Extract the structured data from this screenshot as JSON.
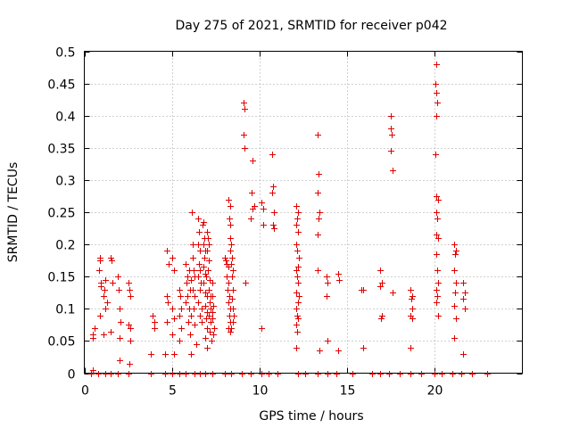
{
  "chart_data": {
    "type": "scatter",
    "title": "Day 275 of 2021, SRMTID for receiver p042",
    "xlabel": "GPS time / hours",
    "ylabel": "SRMTID / TECUs",
    "xlim": [
      0,
      25
    ],
    "ylim": [
      0,
      0.5
    ],
    "xticks": [
      0,
      5,
      10,
      15,
      20
    ],
    "xtick_labels": [
      "0",
      "5",
      "10",
      "15",
      "20"
    ],
    "yticks": [
      0,
      0.05,
      0.1,
      0.15,
      0.2,
      0.25,
      0.3,
      0.35,
      0.4,
      0.45,
      0.5
    ],
    "ytick_labels": [
      "0",
      "0.05",
      "0.1",
      "0.15",
      "0.2",
      "0.25",
      "0.3",
      "0.35",
      "0.4",
      "0.45",
      "0.5"
    ],
    "grid": true,
    "marker": "+",
    "marker_color": "#e00000",
    "series": [
      {
        "name": "SRMTID",
        "points": [
          [
            0.4,
            0.0
          ],
          [
            0.5,
            0.005
          ],
          [
            0.5,
            0.06
          ],
          [
            0.6,
            0.07
          ],
          [
            0.5,
            0.055
          ],
          [
            0.8,
            0.0
          ],
          [
            0.9,
            0.09
          ],
          [
            0.85,
            0.16
          ],
          [
            0.9,
            0.175
          ],
          [
            0.9,
            0.18
          ],
          [
            0.95,
            0.14
          ],
          [
            0.95,
            0.135
          ],
          [
            1.2,
            0.0
          ],
          [
            1.1,
            0.12
          ],
          [
            1.2,
            0.1
          ],
          [
            1.15,
            0.13
          ],
          [
            1.2,
            0.145
          ],
          [
            1.3,
            0.11
          ],
          [
            1.1,
            0.06
          ],
          [
            1.5,
            0.0
          ],
          [
            1.5,
            0.18
          ],
          [
            1.55,
            0.175
          ],
          [
            1.6,
            0.14
          ],
          [
            1.5,
            0.065
          ],
          [
            1.9,
            0.0
          ],
          [
            1.9,
            0.15
          ],
          [
            2.0,
            0.1
          ],
          [
            1.95,
            0.13
          ],
          [
            2.05,
            0.08
          ],
          [
            2.0,
            0.055
          ],
          [
            2.0,
            0.02
          ],
          [
            2.5,
            0.0
          ],
          [
            2.5,
            0.14
          ],
          [
            2.55,
            0.13
          ],
          [
            2.6,
            0.12
          ],
          [
            2.5,
            0.075
          ],
          [
            2.6,
            0.07
          ],
          [
            2.6,
            0.05
          ],
          [
            2.55,
            0.015
          ],
          [
            3.8,
            0.0
          ],
          [
            3.9,
            0.09
          ],
          [
            4.0,
            0.08
          ],
          [
            3.8,
            0.03
          ],
          [
            4.0,
            0.07
          ],
          [
            4.6,
            0.0
          ],
          [
            4.7,
            0.19
          ],
          [
            4.8,
            0.17
          ],
          [
            4.7,
            0.12
          ],
          [
            4.75,
            0.11
          ],
          [
            4.7,
            0.08
          ],
          [
            4.6,
            0.03
          ],
          [
            5.0,
            0.0
          ],
          [
            5.0,
            0.18
          ],
          [
            5.1,
            0.16
          ],
          [
            5.0,
            0.1
          ],
          [
            5.1,
            0.085
          ],
          [
            5.0,
            0.06
          ],
          [
            5.1,
            0.03
          ],
          [
            5.4,
            0.0
          ],
          [
            5.4,
            0.13
          ],
          [
            5.45,
            0.12
          ],
          [
            5.5,
            0.1
          ],
          [
            5.4,
            0.09
          ],
          [
            5.5,
            0.07
          ],
          [
            5.4,
            0.05
          ],
          [
            5.8,
            0.0
          ],
          [
            5.8,
            0.17
          ],
          [
            5.9,
            0.15
          ],
          [
            5.85,
            0.14
          ],
          [
            5.9,
            0.12
          ],
          [
            5.8,
            0.11
          ],
          [
            5.95,
            0.08
          ],
          [
            6.0,
            0.16
          ],
          [
            6.1,
            0.145
          ],
          [
            6.05,
            0.13
          ],
          [
            6.0,
            0.1
          ],
          [
            6.1,
            0.09
          ],
          [
            6.05,
            0.06
          ],
          [
            6.1,
            0.03
          ],
          [
            6.15,
            0.25
          ],
          [
            6.2,
            0.2
          ],
          [
            6.2,
            0.18
          ],
          [
            6.25,
            0.16
          ],
          [
            6.3,
            0.15
          ],
          [
            6.2,
            0.13
          ],
          [
            6.3,
            0.12
          ],
          [
            6.25,
            0.1
          ],
          [
            6.3,
            0.075
          ],
          [
            6.4,
            0.045
          ],
          [
            6.5,
            0.24
          ],
          [
            6.55,
            0.22
          ],
          [
            6.5,
            0.2
          ],
          [
            6.6,
            0.19
          ],
          [
            6.55,
            0.17
          ],
          [
            6.6,
            0.16
          ],
          [
            6.5,
            0.15
          ],
          [
            6.65,
            0.14
          ],
          [
            6.6,
            0.13
          ],
          [
            6.5,
            0.11
          ],
          [
            6.7,
            0.1
          ],
          [
            6.6,
            0.09
          ],
          [
            6.7,
            0.08
          ],
          [
            6.8,
            0.235
          ],
          [
            6.75,
            0.23
          ],
          [
            6.85,
            0.21
          ],
          [
            6.8,
            0.2
          ],
          [
            6.9,
            0.19
          ],
          [
            6.85,
            0.18
          ],
          [
            6.8,
            0.165
          ],
          [
            6.9,
            0.155
          ],
          [
            6.95,
            0.15
          ],
          [
            6.8,
            0.14
          ],
          [
            6.9,
            0.125
          ],
          [
            7.0,
            0.12
          ],
          [
            6.9,
            0.105
          ],
          [
            7.0,
            0.095
          ],
          [
            6.95,
            0.085
          ],
          [
            7.0,
            0.07
          ],
          [
            6.9,
            0.055
          ],
          [
            7.0,
            0.04
          ],
          [
            7.0,
            0.22
          ],
          [
            7.05,
            0.21
          ],
          [
            7.1,
            0.2
          ],
          [
            7.0,
            0.19
          ],
          [
            7.1,
            0.175
          ],
          [
            7.05,
            0.16
          ],
          [
            7.15,
            0.145
          ],
          [
            7.1,
            0.13
          ],
          [
            7.2,
            0.12
          ],
          [
            7.15,
            0.11
          ],
          [
            7.2,
            0.1
          ],
          [
            7.1,
            0.09
          ],
          [
            7.2,
            0.08
          ],
          [
            7.15,
            0.065
          ],
          [
            7.25,
            0.05
          ],
          [
            7.3,
            0.14
          ],
          [
            7.3,
            0.12
          ],
          [
            7.35,
            0.105
          ],
          [
            7.3,
            0.095
          ],
          [
            7.3,
            0.085
          ],
          [
            7.4,
            0.07
          ],
          [
            7.35,
            0.06
          ],
          [
            6.9,
            0.0
          ],
          [
            7.3,
            0.0
          ],
          [
            6.3,
            0.0
          ],
          [
            6.6,
            0.0
          ],
          [
            8.0,
            0.18
          ],
          [
            8.05,
            0.175
          ],
          [
            8.1,
            0.17
          ],
          [
            8.2,
            0.165
          ],
          [
            8.1,
            0.15
          ],
          [
            8.2,
            0.14
          ],
          [
            8.15,
            0.13
          ],
          [
            8.25,
            0.12
          ],
          [
            8.2,
            0.11
          ],
          [
            8.3,
            0.1
          ],
          [
            8.25,
            0.09
          ],
          [
            8.3,
            0.08
          ],
          [
            8.2,
            0.07
          ],
          [
            8.35,
            0.065
          ],
          [
            8.2,
            0.27
          ],
          [
            8.3,
            0.26
          ],
          [
            8.25,
            0.24
          ],
          [
            8.35,
            0.23
          ],
          [
            8.3,
            0.21
          ],
          [
            8.4,
            0.2
          ],
          [
            8.35,
            0.19
          ],
          [
            8.45,
            0.18
          ],
          [
            8.4,
            0.17
          ],
          [
            8.5,
            0.16
          ],
          [
            8.45,
            0.15
          ],
          [
            8.5,
            0.13
          ],
          [
            8.45,
            0.115
          ],
          [
            8.5,
            0.1
          ],
          [
            8.55,
            0.09
          ],
          [
            8.5,
            0.08
          ],
          [
            8.4,
            0.07
          ],
          [
            8.0,
            0.0
          ],
          [
            8.4,
            0.0
          ],
          [
            9.1,
            0.42
          ],
          [
            9.15,
            0.41
          ],
          [
            9.1,
            0.37
          ],
          [
            9.15,
            0.35
          ],
          [
            9.2,
            0.14
          ],
          [
            9.0,
            0.0
          ],
          [
            9.6,
            0.33
          ],
          [
            9.55,
            0.28
          ],
          [
            9.7,
            0.26
          ],
          [
            9.6,
            0.255
          ],
          [
            9.5,
            0.24
          ],
          [
            9.5,
            0.0
          ],
          [
            10.1,
            0.265
          ],
          [
            10.2,
            0.255
          ],
          [
            10.2,
            0.23
          ],
          [
            10.1,
            0.07
          ],
          [
            10.1,
            0.0
          ],
          [
            10.7,
            0.34
          ],
          [
            10.75,
            0.29
          ],
          [
            10.7,
            0.28
          ],
          [
            10.8,
            0.25
          ],
          [
            10.75,
            0.23
          ],
          [
            10.8,
            0.225
          ],
          [
            10.5,
            0.0
          ],
          [
            11.0,
            0.0
          ],
          [
            12.1,
            0.26
          ],
          [
            12.2,
            0.25
          ],
          [
            12.15,
            0.24
          ],
          [
            12.1,
            0.23
          ],
          [
            12.2,
            0.22
          ],
          [
            12.1,
            0.2
          ],
          [
            12.15,
            0.19
          ],
          [
            12.25,
            0.18
          ],
          [
            12.2,
            0.165
          ],
          [
            12.1,
            0.16
          ],
          [
            12.15,
            0.15
          ],
          [
            12.2,
            0.14
          ],
          [
            12.1,
            0.125
          ],
          [
            12.25,
            0.12
          ],
          [
            12.2,
            0.11
          ],
          [
            12.1,
            0.1
          ],
          [
            12.15,
            0.09
          ],
          [
            12.2,
            0.085
          ],
          [
            12.1,
            0.075
          ],
          [
            12.15,
            0.065
          ],
          [
            12.1,
            0.04
          ],
          [
            12.2,
            0.0
          ],
          [
            12.6,
            0.0
          ],
          [
            13.3,
            0.37
          ],
          [
            13.35,
            0.31
          ],
          [
            13.3,
            0.28
          ],
          [
            13.4,
            0.25
          ],
          [
            13.35,
            0.24
          ],
          [
            13.3,
            0.215
          ],
          [
            13.3,
            0.16
          ],
          [
            13.4,
            0.035
          ],
          [
            13.3,
            0.0
          ],
          [
            13.8,
            0.15
          ],
          [
            13.85,
            0.14
          ],
          [
            13.8,
            0.12
          ],
          [
            13.9,
            0.05
          ],
          [
            13.9,
            0.0
          ],
          [
            14.5,
            0.155
          ],
          [
            14.55,
            0.145
          ],
          [
            14.5,
            0.035
          ],
          [
            14.4,
            0.0
          ],
          [
            15.3,
            0.0
          ],
          [
            15.8,
            0.13
          ],
          [
            15.9,
            0.13
          ],
          [
            15.9,
            0.04
          ],
          [
            16.4,
            0.0
          ],
          [
            16.9,
            0.16
          ],
          [
            17.0,
            0.14
          ],
          [
            16.9,
            0.135
          ],
          [
            17.0,
            0.09
          ],
          [
            16.95,
            0.085
          ],
          [
            16.9,
            0.0
          ],
          [
            17.5,
            0.4
          ],
          [
            17.5,
            0.38
          ],
          [
            17.55,
            0.37
          ],
          [
            17.5,
            0.345
          ],
          [
            17.6,
            0.315
          ],
          [
            17.6,
            0.125
          ],
          [
            17.4,
            0.0
          ],
          [
            18.0,
            0.0
          ],
          [
            18.6,
            0.13
          ],
          [
            18.7,
            0.12
          ],
          [
            18.65,
            0.115
          ],
          [
            18.7,
            0.1
          ],
          [
            18.6,
            0.09
          ],
          [
            18.7,
            0.085
          ],
          [
            18.6,
            0.04
          ],
          [
            18.6,
            0.0
          ],
          [
            19.2,
            0.0
          ],
          [
            20.1,
            0.48
          ],
          [
            20.05,
            0.45
          ],
          [
            20.1,
            0.435
          ],
          [
            20.15,
            0.42
          ],
          [
            20.1,
            0.4
          ],
          [
            20.05,
            0.34
          ],
          [
            20.1,
            0.275
          ],
          [
            20.2,
            0.27
          ],
          [
            20.1,
            0.25
          ],
          [
            20.15,
            0.24
          ],
          [
            20.1,
            0.215
          ],
          [
            20.2,
            0.21
          ],
          [
            20.1,
            0.185
          ],
          [
            20.15,
            0.16
          ],
          [
            20.2,
            0.14
          ],
          [
            20.1,
            0.13
          ],
          [
            20.15,
            0.12
          ],
          [
            20.1,
            0.11
          ],
          [
            20.2,
            0.09
          ],
          [
            20.0,
            0.0
          ],
          [
            20.4,
            0.0
          ],
          [
            21.1,
            0.2
          ],
          [
            21.2,
            0.19
          ],
          [
            21.15,
            0.185
          ],
          [
            21.1,
            0.16
          ],
          [
            21.2,
            0.14
          ],
          [
            21.15,
            0.125
          ],
          [
            21.1,
            0.105
          ],
          [
            21.2,
            0.085
          ],
          [
            21.1,
            0.055
          ],
          [
            21.0,
            0.0
          ],
          [
            21.6,
            0.14
          ],
          [
            21.7,
            0.125
          ],
          [
            21.6,
            0.115
          ],
          [
            21.7,
            0.1
          ],
          [
            21.6,
            0.03
          ],
          [
            21.5,
            0.0
          ],
          [
            22.1,
            0.0
          ],
          [
            23.0,
            0.0
          ]
        ]
      }
    ]
  }
}
